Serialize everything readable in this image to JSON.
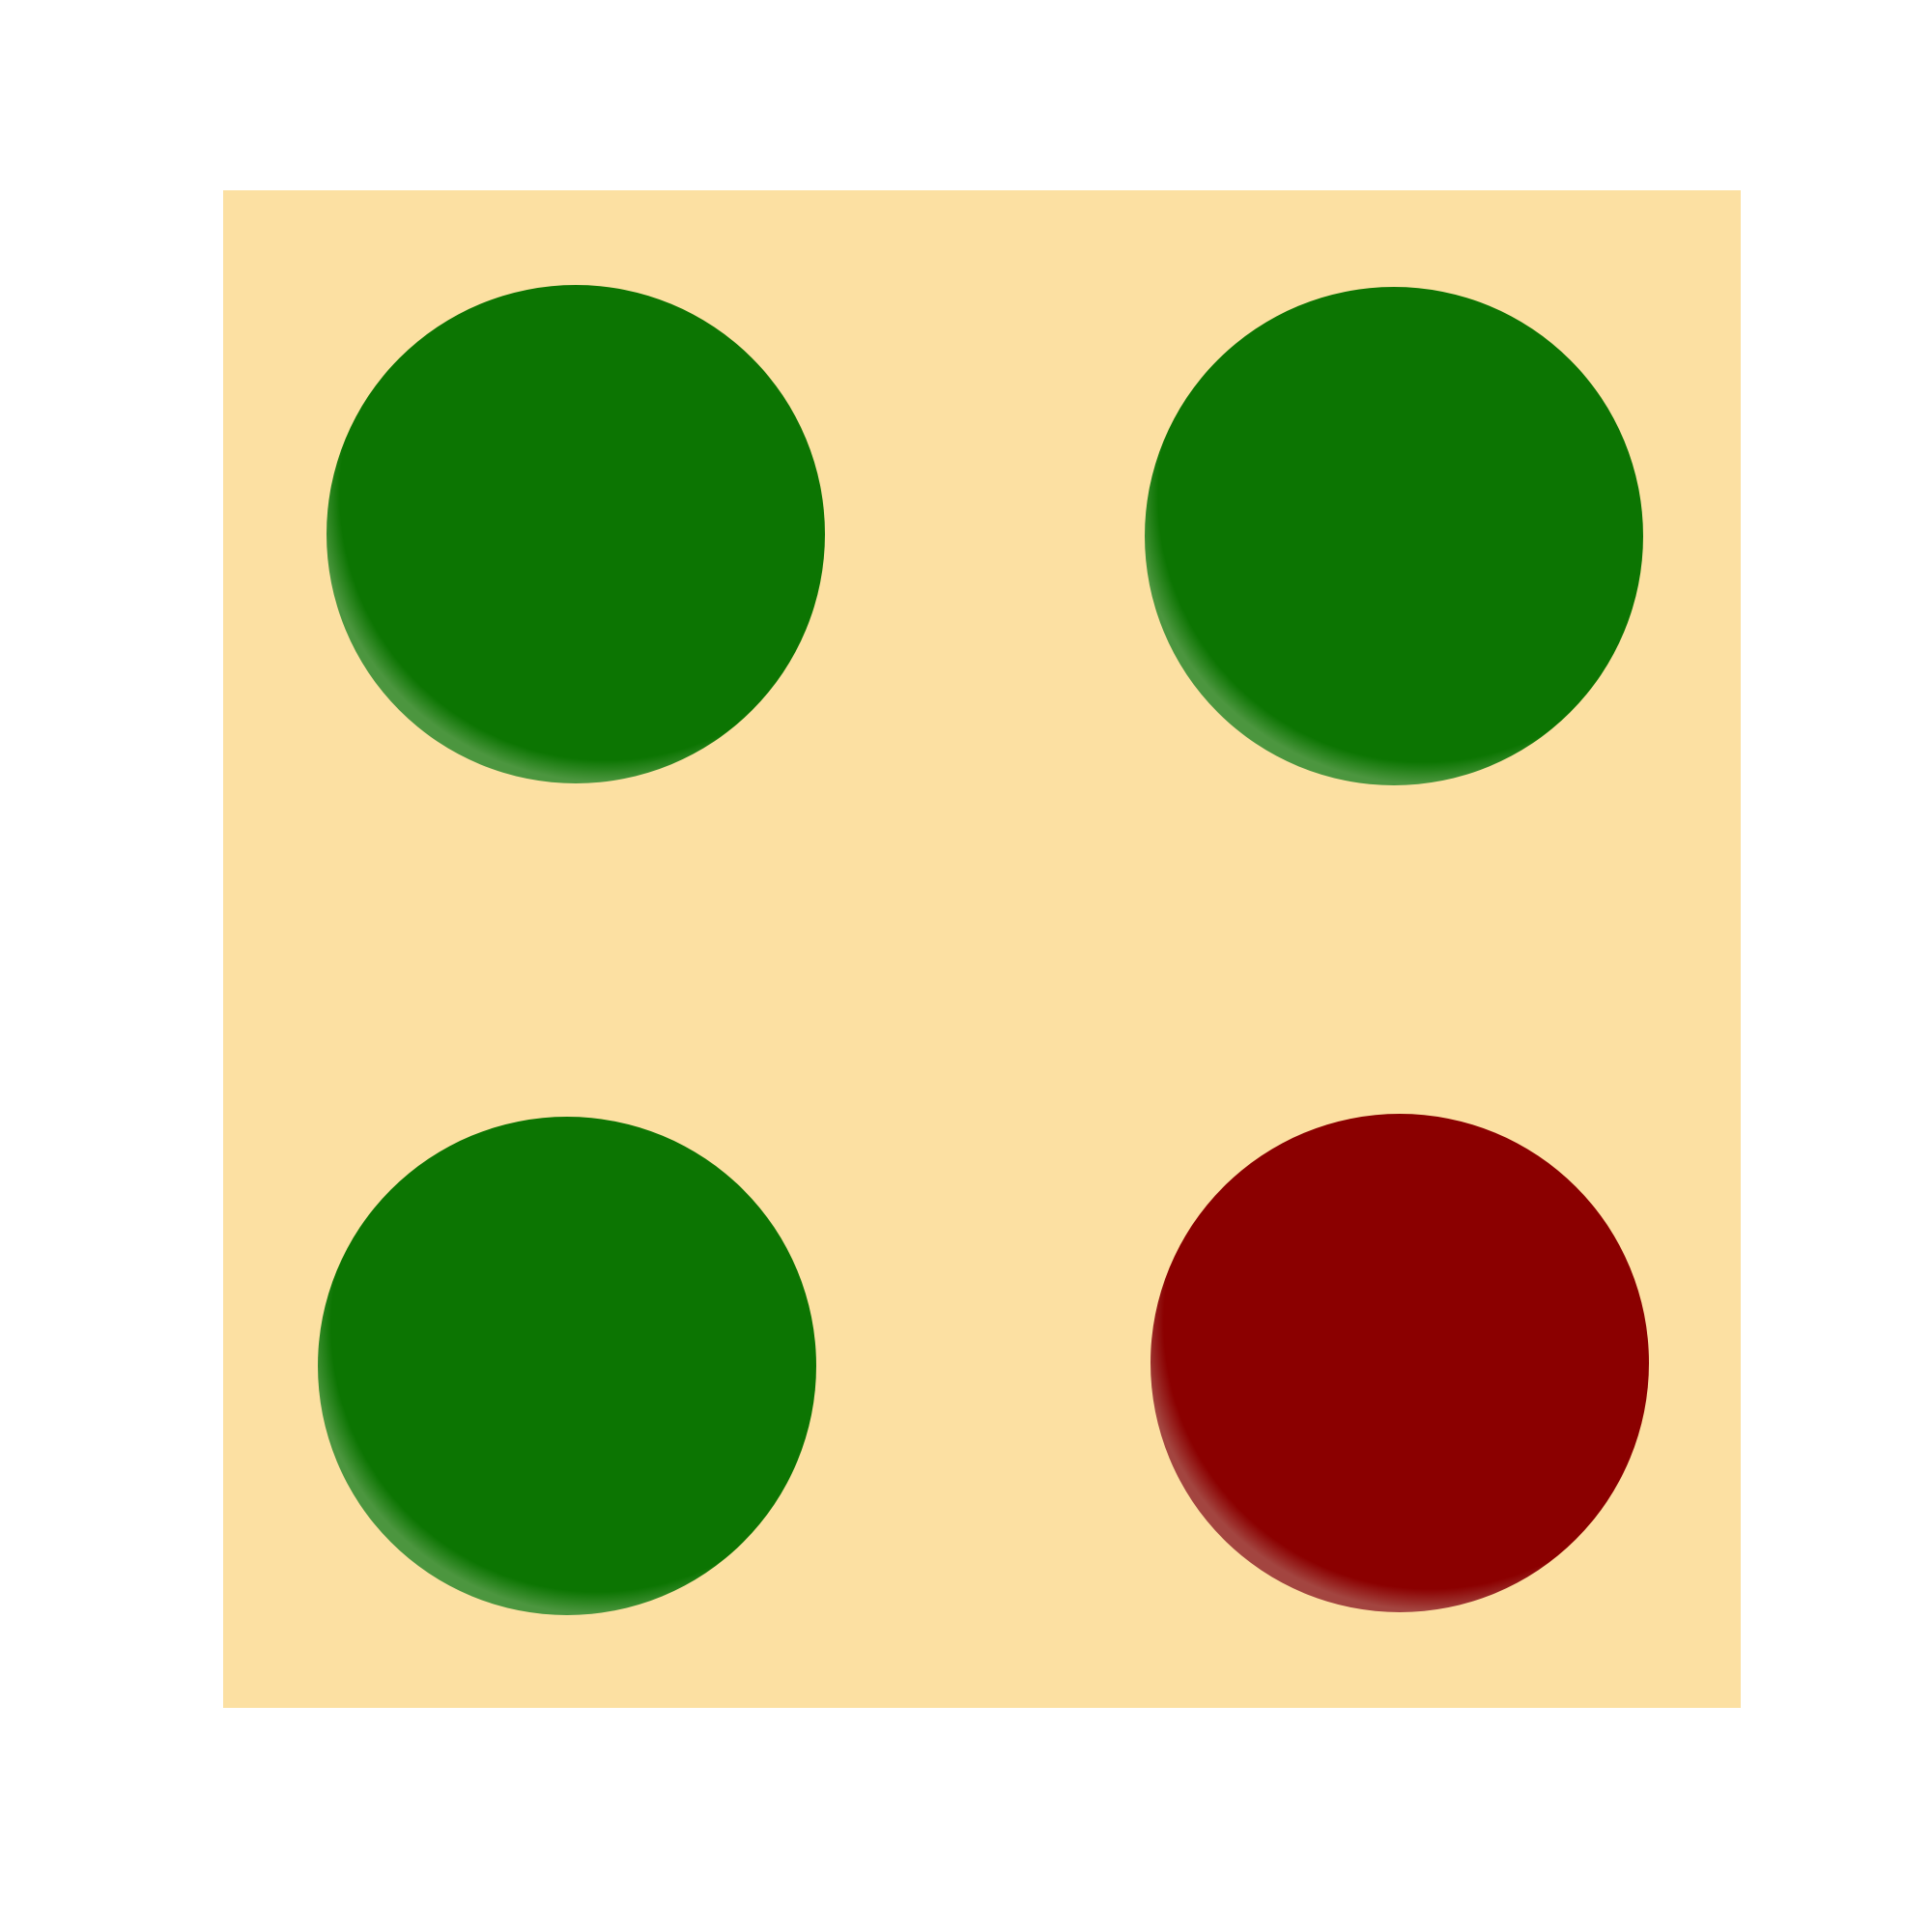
{
  "board": {
    "background_color": "#FCE0A2",
    "page_color": "#FFFFFF"
  },
  "dots": [
    {
      "name": "dot-top-left",
      "color": "#0C7502",
      "highlight": "#4C963F",
      "status": "green"
    },
    {
      "name": "dot-top-right",
      "color": "#0C7502",
      "highlight": "#4C963F",
      "status": "green"
    },
    {
      "name": "dot-bottom-left",
      "color": "#0C7502",
      "highlight": "#4C963F",
      "status": "green"
    },
    {
      "name": "dot-bottom-right",
      "color": "#8B0000",
      "highlight": "#A34540",
      "status": "red"
    }
  ]
}
